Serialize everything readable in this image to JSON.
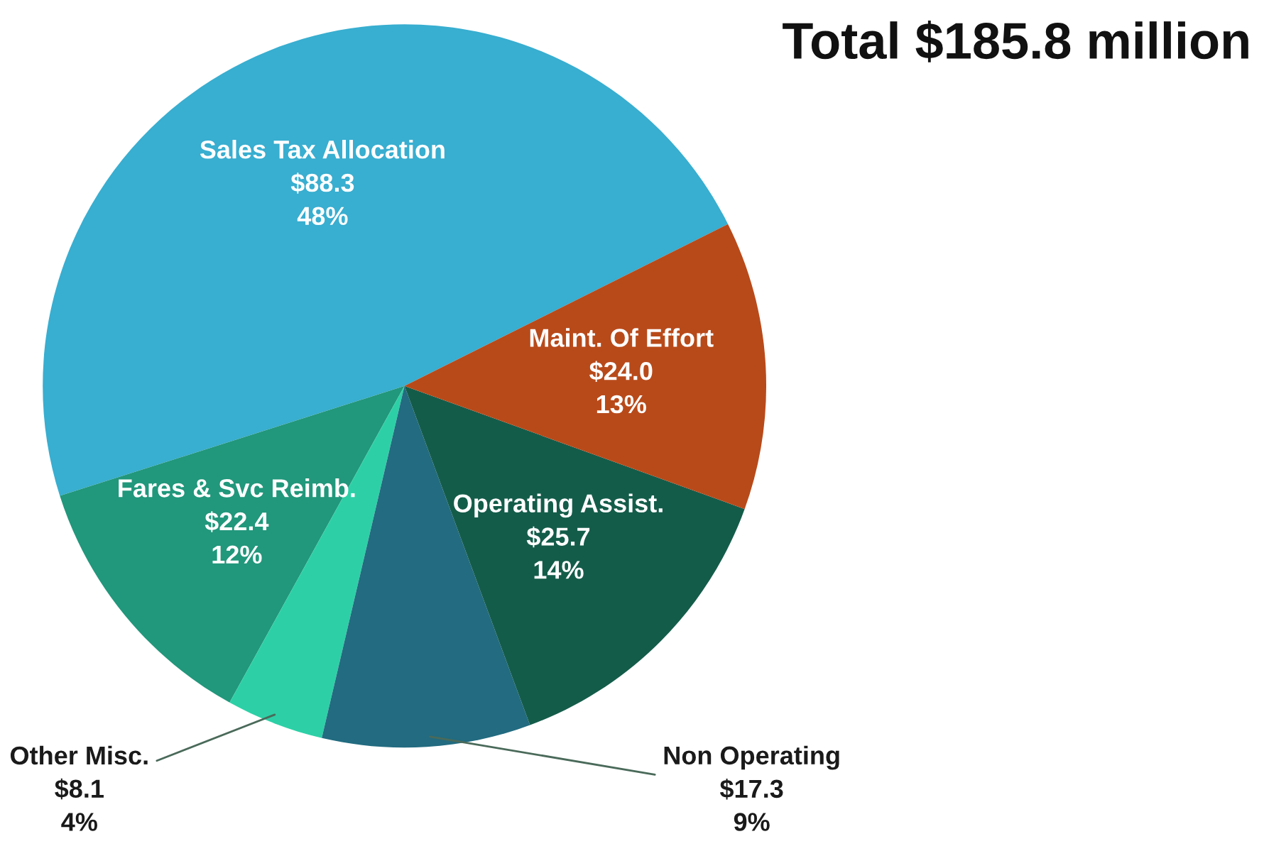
{
  "chart_data": {
    "type": "pie",
    "title": "Total $185.8 million",
    "categories": [
      "Sales Tax Allocation",
      "Fares & Svc Reimb.",
      "Other Misc.",
      "Non Operating",
      "Operating Assist.",
      "Maint. Of Effort"
    ],
    "values": [
      88.3,
      22.4,
      8.1,
      17.3,
      25.7,
      24.0
    ],
    "value_labels": [
      "$88.3\n48%",
      "$22.4\n12%",
      "$8.1\n4%",
      "$17.3\n9%",
      "$25.7\n14%",
      "$24.0\n13%"
    ],
    "colors": [
      "#38aed0",
      "#21977b",
      "#2dd0a6",
      "#226b80",
      "#145c4a",
      "#b84a1a"
    ],
    "legend": false
  }
}
